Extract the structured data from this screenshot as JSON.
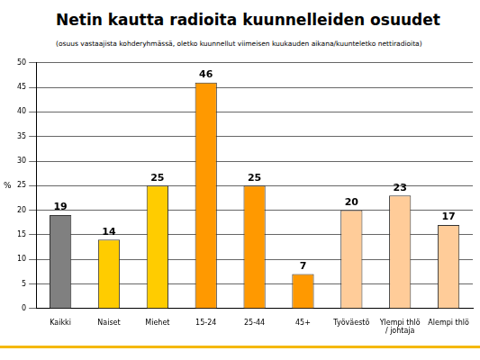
{
  "chart_data": {
    "type": "bar",
    "title": "Netin kautta radioita kuunnelleiden osuudet",
    "subtitle": "(osuus vastaajista kohderyhmässä, oletko kuunnellut viimeisen kuukauden aikana/kuunteletko nettiradioita)",
    "y_label": "%",
    "categories": [
      "Kaikki",
      "Naiset",
      "Miehet",
      "15-24",
      "25-44",
      "45+",
      "Työväestö",
      [
        "Ylempi thlö",
        "/ johtaja"
      ],
      "Alempi thlö"
    ],
    "values": [
      19,
      14,
      25,
      46,
      25,
      7,
      20,
      23,
      17
    ],
    "colors": [
      "#808080",
      "#ffcc00",
      "#ffcc00",
      "#ff9900",
      "#ff9900",
      "#ff9900",
      "#ffcc99",
      "#ffcc99",
      "#ffcc99"
    ],
    "ylim": [
      0,
      50
    ],
    "yticks": [
      0,
      5,
      10,
      15,
      20,
      25,
      30,
      35,
      40,
      45,
      50
    ],
    "grid": true,
    "data_labels": true
  }
}
